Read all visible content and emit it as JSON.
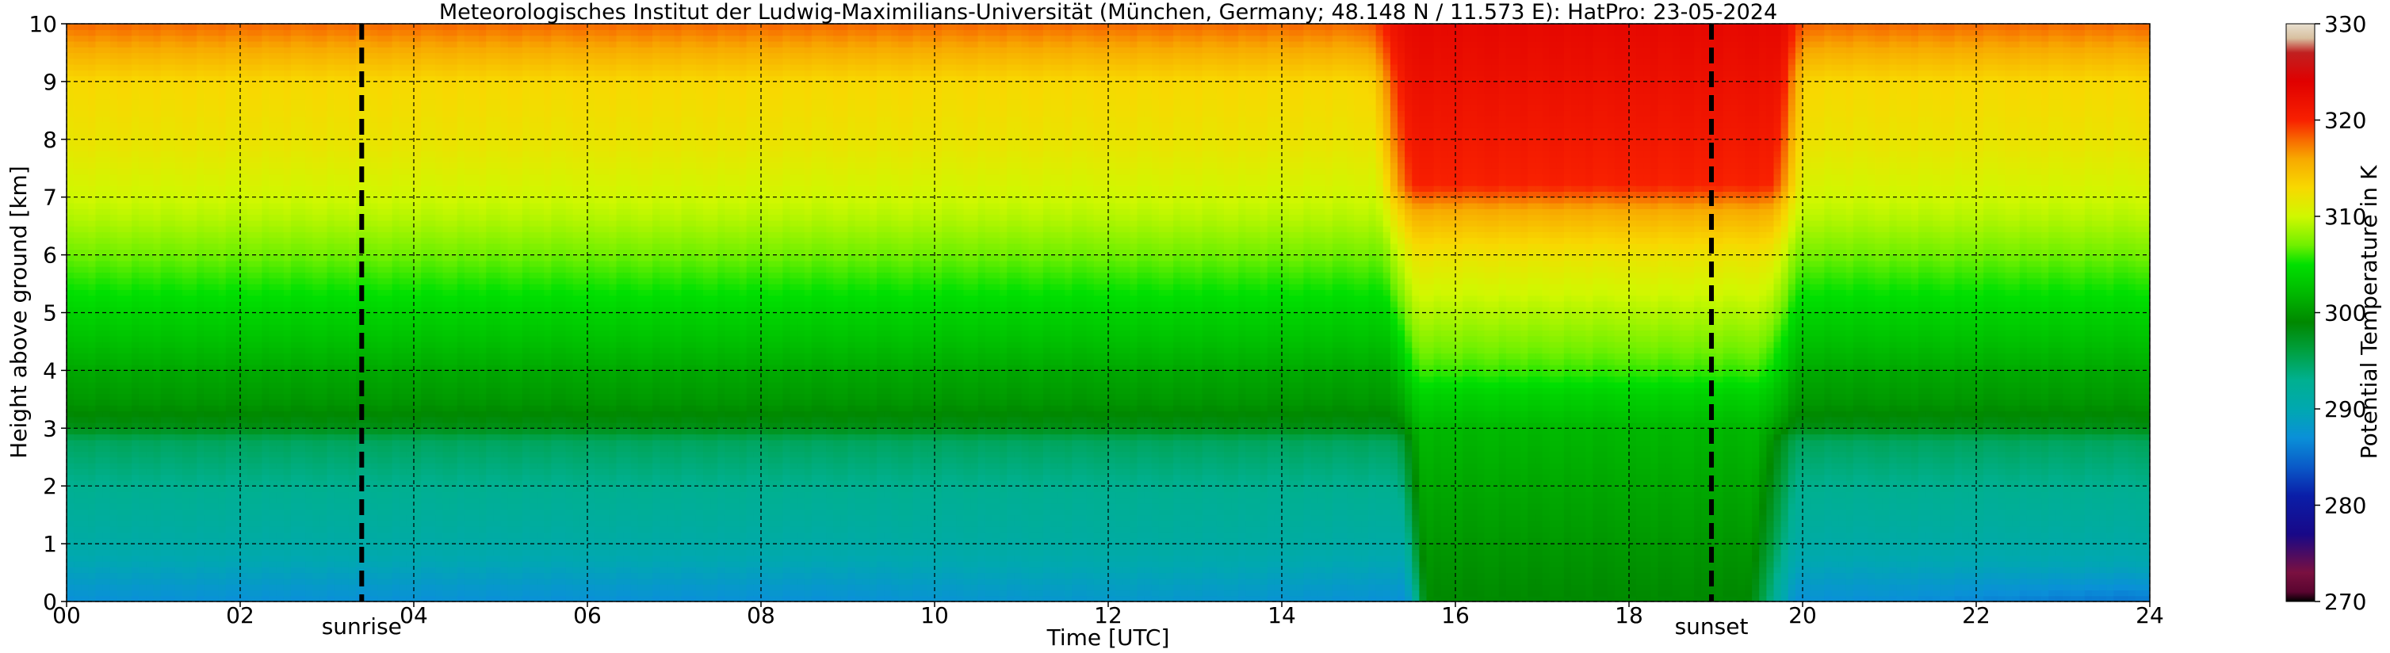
{
  "chart_data": {
    "type": "heatmap",
    "title": "Meteorologisches Institut der Ludwig-Maximilians-Universität (München, Germany; 48.148 N / 11.573 E):    HatPro: 23-05-2024",
    "xlabel": "Time [UTC]",
    "ylabel": "Height above ground [km]",
    "xlim": [
      0,
      24
    ],
    "ylim": [
      0,
      10
    ],
    "x_ticks": [
      "00",
      "02",
      "04",
      "06",
      "08",
      "10",
      "12",
      "14",
      "16",
      "18",
      "20",
      "22",
      "24"
    ],
    "y_ticks": [
      "0",
      "1",
      "2",
      "3",
      "4",
      "5",
      "6",
      "7",
      "8",
      "9",
      "10"
    ],
    "grid": true,
    "colorbar": {
      "label": "Potential Temperature in K",
      "range": [
        270,
        330
      ],
      "ticks": [
        "270",
        "280",
        "290",
        "300",
        "310",
        "320",
        "330"
      ],
      "colors": [
        {
          "v": 270,
          "c": "#000000"
        },
        {
          "v": 271,
          "c": "#5a0530"
        },
        {
          "v": 273,
          "c": "#7a1040"
        },
        {
          "v": 277,
          "c": "#180888"
        },
        {
          "v": 281,
          "c": "#0a1ea8"
        },
        {
          "v": 284,
          "c": "#0a5ac8"
        },
        {
          "v": 287,
          "c": "#0a90d8"
        },
        {
          "v": 290,
          "c": "#00a8b0"
        },
        {
          "v": 293,
          "c": "#00b090"
        },
        {
          "v": 296,
          "c": "#00a040"
        },
        {
          "v": 299,
          "c": "#008800"
        },
        {
          "v": 302,
          "c": "#00b800"
        },
        {
          "v": 305,
          "c": "#00e000"
        },
        {
          "v": 307,
          "c": "#70f000"
        },
        {
          "v": 310,
          "c": "#d0f800"
        },
        {
          "v": 313,
          "c": "#f8d800"
        },
        {
          "v": 316,
          "c": "#f8a800"
        },
        {
          "v": 318,
          "c": "#f86800"
        },
        {
          "v": 320,
          "c": "#f82000"
        },
        {
          "v": 324,
          "c": "#e00000"
        },
        {
          "v": 327,
          "c": "#c02020"
        },
        {
          "v": 328.5,
          "c": "#d8c0a0"
        },
        {
          "v": 330,
          "c": "#e8e0d0"
        }
      ]
    },
    "annotations": [
      {
        "text": "sunrise",
        "x": 3.4
      },
      {
        "text": "sunset",
        "x": 18.95
      }
    ],
    "field": {
      "description_values_in_K": "potential temperature by height and time",
      "stable_profile": [
        [
          0,
          287
        ],
        [
          0.5,
          289
        ],
        [
          1.0,
          291
        ],
        [
          2.0,
          293
        ],
        [
          2.8,
          295
        ],
        [
          3.0,
          298
        ],
        [
          3.5,
          300
        ],
        [
          4.0,
          301
        ],
        [
          5.0,
          304
        ],
        [
          6.0,
          307
        ],
        [
          6.6,
          309
        ],
        [
          7.0,
          310
        ],
        [
          8.0,
          312
        ],
        [
          9.0,
          313
        ],
        [
          9.6,
          316
        ],
        [
          10.0,
          318
        ]
      ],
      "mixed_profile": [
        [
          0,
          299
        ],
        [
          1.0,
          300
        ],
        [
          2.0,
          301
        ],
        [
          3.0,
          302
        ],
        [
          3.6,
          304
        ],
        [
          4.0,
          306
        ],
        [
          5.0,
          309
        ],
        [
          6.0,
          312
        ],
        [
          6.8,
          316
        ],
        [
          7.2,
          320
        ],
        [
          8.0,
          321
        ],
        [
          9.0,
          322
        ],
        [
          10.0,
          323
        ]
      ],
      "mixed_period_hours": [
        15.4,
        19.6
      ],
      "transition_hours": [
        [
          14.9,
          15.7
        ],
        [
          19.3,
          20.1
        ]
      ]
    }
  }
}
